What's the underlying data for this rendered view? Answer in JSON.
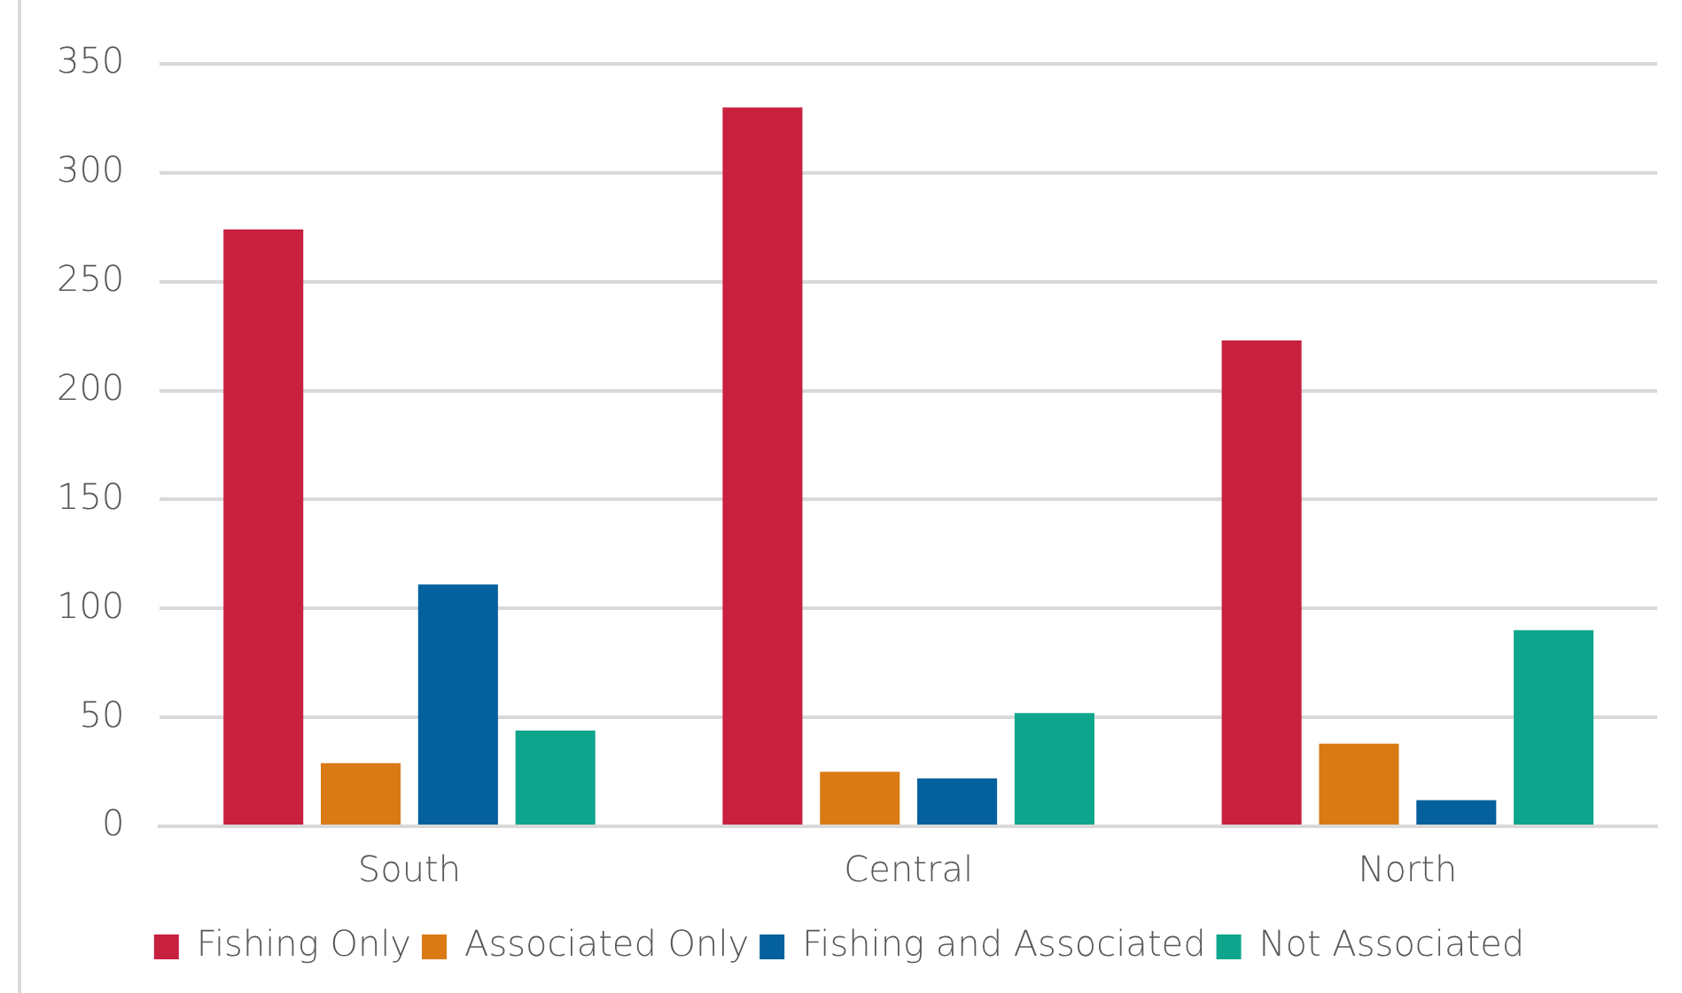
{
  "chart_data": {
    "type": "bar",
    "categories": [
      "South",
      "Central",
      "North"
    ],
    "series": [
      {
        "name": "Fishing Only",
        "color": "#c8203f",
        "values": [
          274,
          330,
          223
        ]
      },
      {
        "name": "Associated Only",
        "color": "#d97a14",
        "values": [
          29,
          25,
          38
        ]
      },
      {
        "name": "Fishing and Associated",
        "color": "#05609e",
        "values": [
          111,
          22,
          12
        ]
      },
      {
        "name": "Not Associated",
        "color": "#0da68c",
        "values": [
          44,
          52,
          90
        ]
      }
    ],
    "ylim": [
      0,
      350
    ],
    "yticks": [
      0,
      50,
      100,
      150,
      200,
      250,
      300,
      350
    ],
    "grid": "y",
    "legend": "bottom"
  }
}
